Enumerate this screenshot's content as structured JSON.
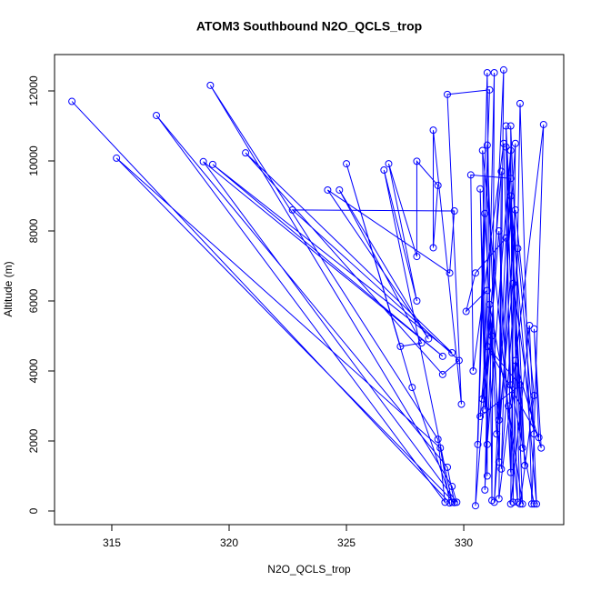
{
  "chart_data": {
    "type": "line",
    "title": "ATOM3 Southbound N2O_QCLS_trop",
    "x_label": "N2O_QCLS_trop",
    "y_label": "Altitude (m)",
    "color": "#0000ff",
    "markers": "open-circle",
    "xlim": [
      312.56,
      334.26
    ],
    "ylim": [
      -390,
      13039
    ],
    "xticks": [
      315,
      320,
      325,
      330
    ],
    "yticks": [
      0,
      2000,
      4000,
      6000,
      8000,
      10000,
      12000
    ],
    "x": [
      313.3,
      329.4,
      329.0,
      315.2,
      329.6,
      329.3,
      316.9,
      329.2,
      328.9,
      319.2,
      329.5,
      329.7,
      318.9,
      329.1,
      319.3,
      329.5,
      320.7,
      329.1,
      329.8,
      322.7,
      329.6,
      329.4,
      324.2,
      328.5,
      324.7,
      328.2,
      327.3,
      325.0,
      327.8,
      329.5,
      326.6,
      328.0,
      326.8,
      328.0,
      328.0,
      328.9,
      328.7,
      328.7,
      329.9,
      329.3,
      331.1,
      330.6,
      331.0,
      331.2,
      331.3,
      330.9,
      331.7,
      331.5,
      333.4,
      332.9,
      332.4,
      332.1,
      332.0,
      332.6,
      331.8,
      332.3,
      330.8,
      331.0,
      331.0,
      331.5,
      331.6,
      330.5,
      330.9,
      331.4,
      332.2,
      332.0,
      332.8,
      333.1,
      332.0,
      332.4,
      333.0,
      332.2,
      331.3,
      331.8,
      330.5,
      330.1,
      331.0,
      330.8,
      331.2,
      331.5,
      332.1,
      333.0,
      332.3,
      331.6,
      332.0,
      331.0,
      330.7,
      330.9,
      331.5,
      332.0,
      331.8,
      332.5,
      332.2,
      333.3,
      333.0,
      333.2,
      331.0,
      332.4,
      330.7,
      331.1,
      331.9,
      332.5,
      332.0,
      330.3,
      330.4,
      331.7,
      332.0,
      333.0
    ],
    "values": [
      11700,
      230,
      1800,
      10080,
      240,
      1250,
      11300,
      250,
      2050,
      12160,
      700,
      250,
      9980,
      4420,
      9900,
      4520,
      10230,
      3900,
      4300,
      8600,
      8570,
      6800,
      9170,
      4920,
      9170,
      4800,
      4700,
      9920,
      3530,
      250,
      9740,
      6000,
      9920,
      7270,
      9990,
      9300,
      7520,
      10880,
      3050,
      11900,
      12030,
      1900,
      12520,
      300,
      12520,
      600,
      12600,
      350,
      11040,
      200,
      11640,
      250,
      11000,
      1300,
      10400,
      250,
      10300,
      1000,
      10450,
      1400,
      9700,
      150,
      8500,
      2200,
      10500,
      200,
      5300,
      200,
      9000,
      200,
      3300,
      8600,
      250,
      7800,
      6800,
      5700,
      6300,
      3200,
      5000,
      2600,
      6500,
      2200,
      7500,
      1200,
      10300,
      1900,
      9200,
      2900,
      8000,
      1100,
      11000,
      1800,
      4300,
      1800,
      5200,
      2100,
      4700,
      3600,
      2700,
      5900,
      3000,
      200,
      9500,
      9600,
      4000,
      10500,
      3600,
      200
    ]
  }
}
